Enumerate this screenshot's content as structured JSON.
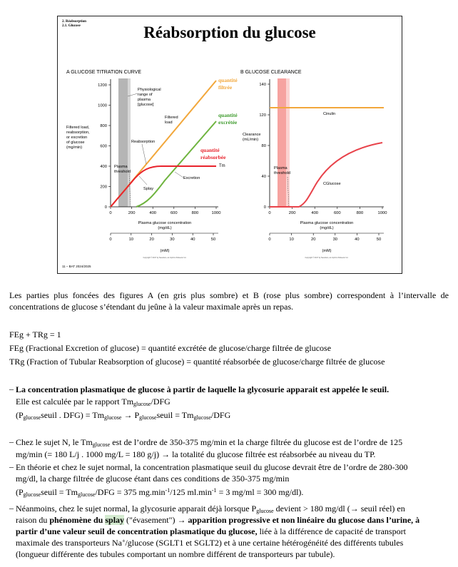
{
  "slide": {
    "header_lines": [
      "2. Réabsorption",
      "2.1. Glucose"
    ],
    "title": "Réabsorption du glucose",
    "footer": "11 – BAT 2024/2025",
    "panel_a": {
      "label": "A  GLUCOSE TITRATION CURVE",
      "yaxis_label": [
        "Filtered load,",
        "reabsorption,",
        "or excretion",
        "of glucose",
        "(mg/min)"
      ],
      "range_label": [
        "Physiological",
        "range of",
        "plasma",
        "[glucose]"
      ],
      "filtered_label": [
        "Filtered",
        "load"
      ],
      "reabsorption_label": "Reabsorption",
      "excretion_label": "Excretion",
      "plasma_threshold": [
        "Plasma",
        "threshold"
      ],
      "splay": "Splay",
      "tm": "Tm",
      "red_qf": [
        "quantité",
        "filtrée"
      ],
      "red_qe": [
        "quantité",
        "excrétée"
      ],
      "red_qr": [
        "quantité",
        "réabsorbée"
      ],
      "x_ticks_mg": [
        "0",
        "200",
        "400",
        "600",
        "800",
        "1000"
      ],
      "y_ticks": [
        "0",
        "200",
        "400",
        "600",
        "800",
        "1000",
        "1200"
      ],
      "xlabel": "Plasma glucose concentration",
      "xunit": "(mg/dL)",
      "x_ticks_mm": [
        "0",
        "10",
        "20",
        "30",
        "40",
        "50"
      ],
      "xunit2": "(mM)",
      "copyright": "Copyright © 2017 by Saunders, an imprint of Elsevier Inc."
    },
    "panel_b": {
      "label": "B  GLUCOSE CLEARANCE",
      "yaxis_label": [
        "Clearance",
        "(mL/min)"
      ],
      "cinulin": "Cinulin",
      "cglucose": "CGlucose",
      "plasma_threshold": [
        "Plasma",
        "threshold"
      ],
      "x_ticks_mg": [
        "0",
        "200",
        "400",
        "600",
        "800",
        "1000"
      ],
      "y_ticks": [
        "0",
        "40",
        "80",
        "120",
        "140"
      ],
      "xlabel": "Plasma glucose concentration",
      "xunit": "(mg/dL)",
      "x_ticks_mm": [
        "0",
        "10",
        "20",
        "30",
        "40",
        "50"
      ],
      "xunit2": "(mM)",
      "copyright": "Copyright © 2017 by Saunders, an imprint of Elsevier Inc."
    }
  },
  "colors": {
    "filtered": "#f2a73b",
    "excreted": "#6fb43f",
    "reabsorbed": "#e8242d",
    "clearance": "#e8424a",
    "range_a": "#b5b5b5",
    "range_b": "#f6a3a0"
  },
  "text": {
    "p1": "Les parties plus foncées des figures A (en gris plus sombre) et B (rose plus sombre) correspondent à l’intervalle de concentrations de glucose s’étendant du jeûne à la valeur maximale après un repas.",
    "eq1": "FEg + TRg = 1",
    "eq2": "FEg (Fractional Excretion of glucose) = quantité excrétée de glucose/charge filtrée de glucose",
    "eq3": "TRg (Fraction of Tubular Reabsorption of glucose) = quantité réabsorbée de glucose/charge filtrée de glucose",
    "b1_bold": "La concentration plasmatique de glucose à partir de laquelle la glycosurie apparait est appelée le seuil.",
    "b1_l2_a": "Elle est calculée par le rapport Tm",
    "sub_glucose": "glucose",
    "b1_l2_b": "/DFG",
    "b1_l3_a": "(P",
    "b1_l3_b": "seuil . DFG) = Tm",
    "b1_l3_c": " → P",
    "b1_l3_d": "seuil = Tm",
    "b1_l3_e": "/DFG",
    "b2_a": "Chez le sujet N, le Tm",
    "b2_b": " est de l’ordre de 350-375 mg/min et la charge filtrée du glucose est de l’ordre de 125",
    "b2_l2": "mg/min (= 180 L/j . 1000 mg/L = 180 g/j) → la totalité du glucose filtrée est réabsorbée au niveau du TP.",
    "b3_l1": "En théorie et chez le sujet normal, la concentration plasmatique seuil du glucose devrait être de l’ordre de 280-300",
    "b3_l2": "mg/dl, la charge filtrée de glucose étant dans ces conditions de 350-375 mg/min",
    "b3_l3_a": "(P",
    "b3_l3_b": "seuil = Tm",
    "b3_l3_c": "/DFG = 375 mg.min",
    "sup_m1": "-1",
    "b3_l3_d": "/125 ml.min",
    "b3_l3_e": " = 3 mg/ml = 300 mg/dl).",
    "b4_l1_a": "Néanmoins, chez le sujet normal, la glycosurie apparait déjà lorsque P",
    "b4_l1_b": " devient > 180 mg/dl (→ seuil réel) en",
    "b4_l2_a": "raison du ",
    "b4_l2_bold1": "phénomène du ",
    "b4_l2_splay": "splay",
    "b4_l2_b": " (\"évasement\") ",
    "b4_l2_bold2": "→ apparition progressive et non linéaire du glucose dans l’urine, à",
    "b4_l3_bold": "partir d’une valeur seuil de concentration plasmatique du glucose,",
    "b4_l3_b": " liée à la différence de capacité de transport",
    "b4_l4_a": "maximale des transporteurs Na",
    "sup_plus": "+",
    "b4_l4_b": "/glucose (SGLT1 et SGLT2) et à une certaine hétérogénéité des différents tubules",
    "b4_l5": "(longueur différente des tubules comportant un nombre différent de transporteurs par tubule)."
  }
}
